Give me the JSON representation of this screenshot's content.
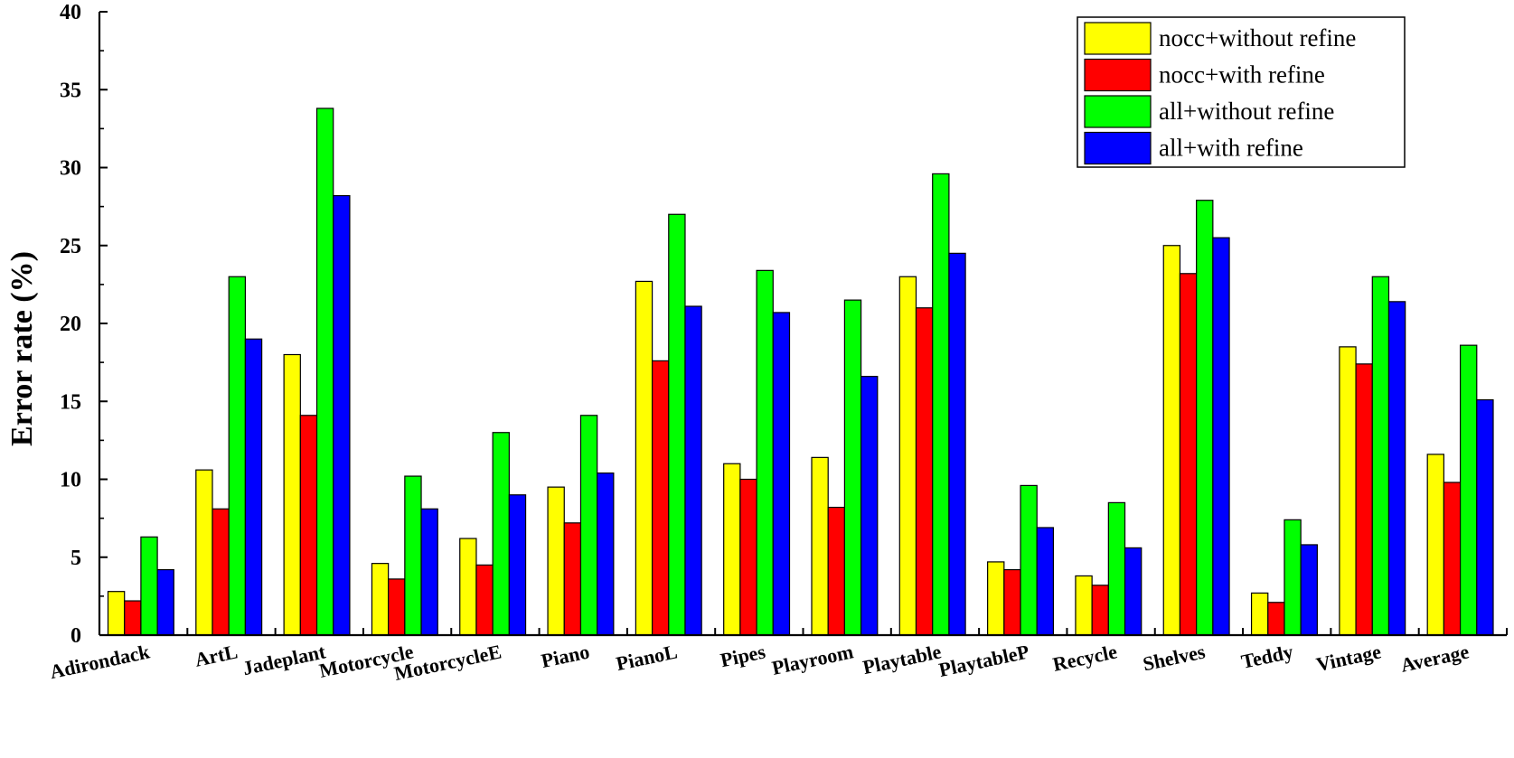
{
  "chart_data": {
    "type": "bar",
    "title": "",
    "xlabel": "",
    "ylabel": "Error rate (%)",
    "ylim": [
      0,
      40
    ],
    "yticks": [
      "0",
      "5",
      "10",
      "15",
      "20",
      "25",
      "30",
      "35",
      "40"
    ],
    "grid": false,
    "legend_position": "top-right",
    "categories": [
      "Adirondack",
      "ArtL",
      "Jadeplant",
      "Motorcycle",
      "MotorcycleE",
      "Piano",
      "PianoL",
      "Pipes",
      "Playroom",
      "Playtable",
      "PlaytableP",
      "Recycle",
      "Shelves",
      "Teddy",
      "Vintage",
      "Average"
    ],
    "series": [
      {
        "name": "nocc+without refine",
        "color": "#ffff00",
        "values": [
          2.8,
          10.6,
          18.0,
          4.6,
          6.2,
          9.5,
          22.7,
          11.0,
          11.4,
          23.0,
          4.7,
          3.8,
          25.0,
          2.7,
          18.5,
          11.6
        ]
      },
      {
        "name": "nocc+with refine",
        "color": "#ff0000",
        "values": [
          2.2,
          8.1,
          14.1,
          3.6,
          4.5,
          7.2,
          17.6,
          10.0,
          8.2,
          21.0,
          4.2,
          3.2,
          23.2,
          2.1,
          17.4,
          9.8
        ]
      },
      {
        "name": "all+without refine",
        "color": "#00ff00",
        "values": [
          6.3,
          23.0,
          33.8,
          10.2,
          13.0,
          14.1,
          27.0,
          23.4,
          21.5,
          29.6,
          9.6,
          8.5,
          27.9,
          7.4,
          23.0,
          18.6
        ]
      },
      {
        "name": "all+with refine",
        "color": "#0000ff",
        "values": [
          4.2,
          19.0,
          28.2,
          8.1,
          9.0,
          10.4,
          21.1,
          20.7,
          16.6,
          24.5,
          6.9,
          5.6,
          25.5,
          5.8,
          21.4,
          15.1
        ]
      }
    ]
  }
}
